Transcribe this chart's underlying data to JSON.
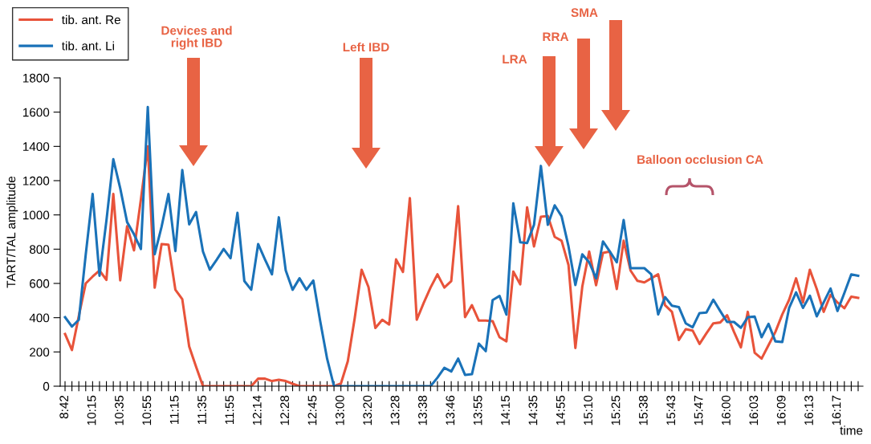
{
  "chart_data": {
    "type": "line",
    "xlabel": "time",
    "ylabel": "TART/TAL amplitude",
    "categories": [
      "8:42",
      null,
      null,
      null,
      "10:15",
      null,
      null,
      null,
      "10:35",
      null,
      null,
      null,
      "10:55",
      null,
      null,
      null,
      "11:15",
      null,
      null,
      null,
      "11:35",
      null,
      null,
      null,
      "11:55",
      null,
      null,
      null,
      "12:14",
      null,
      null,
      null,
      "12:28",
      null,
      null,
      null,
      "12:45",
      null,
      null,
      null,
      "13:00",
      null,
      null,
      null,
      "13:20",
      null,
      null,
      null,
      "13:28",
      null,
      null,
      null,
      "13:38",
      null,
      null,
      null,
      "13:46",
      null,
      null,
      null,
      "13:55",
      null,
      null,
      null,
      "14:15",
      null,
      null,
      null,
      "14:35",
      null,
      null,
      null,
      "14:55",
      null,
      null,
      null,
      "15:10",
      null,
      null,
      null,
      "15:25",
      null,
      null,
      null,
      "15:38",
      null,
      null,
      null,
      "15:43",
      null,
      null,
      null,
      "15:47",
      null,
      null,
      null,
      "16:00",
      null,
      null,
      null,
      "16:03",
      null,
      null,
      null,
      "16:09",
      null,
      null,
      null,
      "16:13",
      null,
      null,
      null,
      "16:17",
      null,
      null,
      null
    ],
    "series": [
      {
        "name": "tib. ant. Re",
        "color": "#e8533a",
        "values": [
          305,
          211,
          410,
          600,
          640,
          676,
          621,
          1122,
          618,
          934,
          793,
          1090,
          1400,
          575,
          830,
          826,
          563,
          508,
          232,
          114,
          0,
          0,
          0,
          0,
          0,
          0,
          0,
          0,
          44,
          44,
          30,
          37,
          30,
          14,
          0,
          0,
          0,
          0,
          0,
          0,
          15,
          145,
          396,
          680,
          579,
          340,
          388,
          360,
          740,
          667,
          1098,
          388,
          486,
          576,
          653,
          576,
          613,
          1051,
          403,
          473,
          383,
          383,
          380,
          286,
          262,
          669,
          595,
          1044,
          816,
          989,
          994,
          872,
          849,
          708,
          223,
          581,
          786,
          590,
          778,
          786,
          567,
          849,
          675,
          615,
          606,
          630,
          653,
          473,
          434,
          270,
          333,
          325,
          247,
          309,
          367,
          372,
          414,
          317,
          227,
          434,
          195,
          161,
          239,
          317,
          419,
          505,
          630,
          489,
          680,
          567,
          434,
          533,
          489,
          455,
          523,
          516
        ]
      },
      {
        "name": "tib. ant. Li",
        "color": "#1a72b8",
        "values": [
          403,
          348,
          388,
          768,
          1122,
          645,
          966,
          1325,
          1156,
          958,
          887,
          801,
          1630,
          770,
          931,
          1122,
          789,
          1262,
          945,
          1017,
          786,
          680,
          739,
          801,
          747,
          1012,
          614,
          563,
          830,
          739,
          653,
          986,
          676,
          563,
          630,
          563,
          617,
          380,
          161,
          0,
          0,
          0,
          0,
          0,
          0,
          0,
          0,
          0,
          0,
          0,
          0,
          0,
          0,
          0,
          50,
          107,
          86,
          161,
          66,
          70,
          248,
          205,
          503,
          527,
          418,
          1067,
          840,
          836,
          942,
          1286,
          942,
          1056,
          992,
          817,
          591,
          770,
          723,
          630,
          845,
          786,
          723,
          970,
          689,
          689,
          689,
          653,
          419,
          520,
          470,
          462,
          367,
          344,
          427,
          430,
          505,
          439,
          375,
          375,
          341,
          403,
          406,
          286,
          364,
          262,
          258,
          458,
          548,
          457,
          528,
          408,
          489,
          570,
          439,
          544,
          653,
          645
        ]
      }
    ],
    "ylim": [
      0,
      1800
    ],
    "yticks": [
      0,
      200,
      400,
      600,
      800,
      1000,
      1200,
      1400,
      1600,
      1800
    ],
    "grid": false,
    "legend": "top left",
    "marker": "none",
    "line_style": "solid",
    "annotations": [
      "Devices and\nright IBD",
      "Left IBD",
      "LRA",
      "RRA",
      "SMA",
      "Balloon occlusion CA"
    ]
  }
}
